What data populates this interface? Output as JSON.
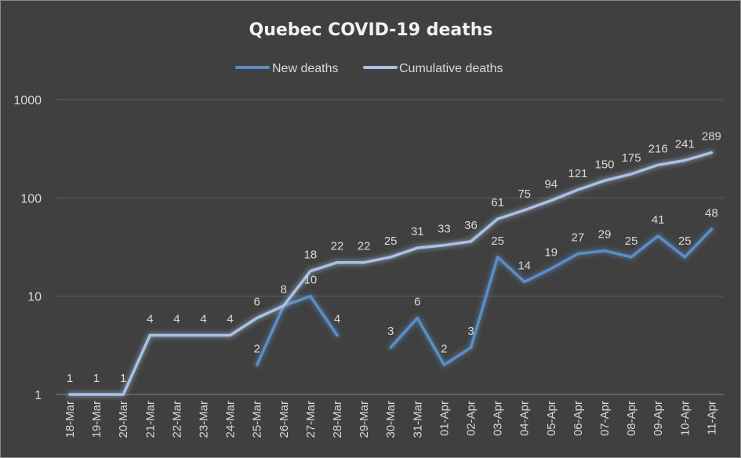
{
  "chart_data": {
    "type": "line",
    "title": "Quebec COVID-19 deaths",
    "xlabel": "",
    "ylabel": "",
    "yscale": "log",
    "ylim": [
      1,
      1000
    ],
    "yticks": [
      "1",
      "10",
      "100",
      "1000"
    ],
    "grid": true,
    "legend_position": "top",
    "categories": [
      "18-Mar",
      "19-Mar",
      "20-Mar",
      "21-Mar",
      "22-Mar",
      "23-Mar",
      "24-Mar",
      "25-Mar",
      "26-Mar",
      "27-Mar",
      "28-Mar",
      "29-Mar",
      "30-Mar",
      "31-Mar",
      "01-Apr",
      "02-Apr",
      "03-Apr",
      "04-Apr",
      "05-Apr",
      "06-Apr",
      "07-Apr",
      "08-Apr",
      "09-Apr",
      "10-Apr",
      "11-Apr"
    ],
    "series": [
      {
        "name": "New deaths",
        "color": "#5b8ec6",
        "values": [
          null,
          null,
          null,
          null,
          null,
          null,
          null,
          2,
          8,
          10,
          4,
          null,
          3,
          6,
          2,
          3,
          25,
          14,
          19,
          27,
          29,
          25,
          41,
          25,
          48
        ],
        "labels": [
          null,
          null,
          null,
          null,
          null,
          null,
          null,
          "2",
          "8",
          "10",
          "4",
          null,
          "3",
          "6",
          "2",
          "3",
          "25",
          "14",
          "19",
          "27",
          "29",
          "25",
          "41",
          "25",
          "48"
        ]
      },
      {
        "name": "Cumulative deaths",
        "color": "#a9c1e4",
        "values": [
          1,
          1,
          1,
          4,
          4,
          4,
          4,
          6,
          8,
          18,
          22,
          22,
          25,
          31,
          33,
          36,
          61,
          75,
          94,
          121,
          150,
          175,
          216,
          241,
          289
        ],
        "labels": [
          "1",
          "1",
          "1",
          "4",
          "4",
          "4",
          "4",
          "6",
          null,
          "18",
          "22",
          "22",
          "25",
          "31",
          "33",
          "36",
          "61",
          "75",
          "94",
          "121",
          "150",
          "175",
          "216",
          "241",
          "289"
        ]
      }
    ]
  }
}
